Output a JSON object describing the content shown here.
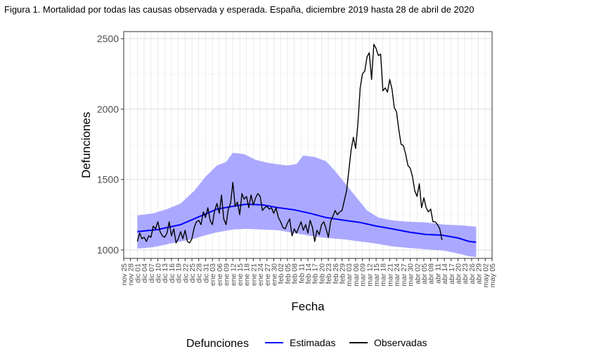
{
  "figure": {
    "caption": "Figura 1. Mortalidad por todas las causas observada y esperada. España, diciembre 2019 hasta 28 de abril de 2020"
  },
  "colors": {
    "expected_line": "#0000ff",
    "expected_band": "#a7a4ff",
    "observed_line": "#000000",
    "grid": "#e6e6e6",
    "panel_border": "#333333"
  },
  "chart_data": {
    "type": "line",
    "title": "",
    "xlabel": "Fecha",
    "ylabel": "Defunciones",
    "ylim": [
      940,
      2550
    ],
    "y_ticks": [
      1000,
      1500,
      2000,
      2500
    ],
    "x_date_range": [
      "2019-11-25",
      "2020-05-05"
    ],
    "x_tick_dates": [
      "2019-11-25",
      "2019-11-28",
      "2019-12-01",
      "2019-12-04",
      "2019-12-07",
      "2019-12-10",
      "2019-12-13",
      "2019-12-16",
      "2019-12-19",
      "2019-12-22",
      "2019-12-25",
      "2019-12-28",
      "2019-12-31",
      "2020-01-03",
      "2020-01-06",
      "2020-01-09",
      "2020-01-12",
      "2020-01-15",
      "2020-01-18",
      "2020-01-21",
      "2020-01-24",
      "2020-01-27",
      "2020-01-30",
      "2020-02-02",
      "2020-02-05",
      "2020-02-08",
      "2020-02-11",
      "2020-02-14",
      "2020-02-17",
      "2020-02-20",
      "2020-02-23",
      "2020-02-26",
      "2020-02-29",
      "2020-03-03",
      "2020-03-06",
      "2020-03-09",
      "2020-03-12",
      "2020-03-15",
      "2020-03-18",
      "2020-03-21",
      "2020-03-24",
      "2020-03-27",
      "2020-03-30",
      "2020-04-02",
      "2020-04-05",
      "2020-04-08",
      "2020-04-11",
      "2020-04-14",
      "2020-04-17",
      "2020-04-20",
      "2020-04-23",
      "2020-04-26",
      "2020-04-29",
      "2020-05-02",
      "2020-05-05"
    ],
    "x_tick_labels": [
      "nov 25",
      "nov 28",
      "dic 01",
      "dic 04",
      "dic 07",
      "dic 10",
      "dic 13",
      "dic 16",
      "dic 19",
      "dic 22",
      "dic 25",
      "dic 28",
      "dic 31",
      "ene 03",
      "ene 06",
      "ene 09",
      "ene 12",
      "ene 15",
      "ene 18",
      "ene 21",
      "ene 24",
      "ene 27",
      "ene 30",
      "feb 02",
      "feb 05",
      "feb 08",
      "feb 11",
      "feb 14",
      "feb 17",
      "feb 20",
      "feb 23",
      "feb 26",
      "feb 29",
      "mar 03",
      "mar 06",
      "mar 09",
      "mar 12",
      "mar 15",
      "mar 18",
      "mar 21",
      "mar 24",
      "mar 27",
      "mar 30",
      "abr 02",
      "abr 05",
      "abr 08",
      "abr 11",
      "abr 14",
      "abr 17",
      "abr 20",
      "abr 23",
      "abr 26",
      "abr 29",
      "may 02",
      "may 05"
    ],
    "legend": {
      "title": "Defunciones",
      "position": "bottom",
      "entries": [
        "Estimadas",
        "Observadas"
      ]
    },
    "series": [
      {
        "name": "Estimadas",
        "points": [
          [
            "2019-12-01",
            1130
          ],
          [
            "2019-12-10",
            1145
          ],
          [
            "2019-12-20",
            1180
          ],
          [
            "2019-12-28",
            1235
          ],
          [
            "2020-01-05",
            1290
          ],
          [
            "2020-01-12",
            1310
          ],
          [
            "2020-01-18",
            1325
          ],
          [
            "2020-01-25",
            1320
          ],
          [
            "2020-02-01",
            1300
          ],
          [
            "2020-02-08",
            1285
          ],
          [
            "2020-02-15",
            1260
          ],
          [
            "2020-02-22",
            1230
          ],
          [
            "2020-03-01",
            1210
          ],
          [
            "2020-03-08",
            1195
          ],
          [
            "2020-03-15",
            1170
          ],
          [
            "2020-03-22",
            1150
          ],
          [
            "2020-03-30",
            1125
          ],
          [
            "2020-04-06",
            1110
          ],
          [
            "2020-04-13",
            1105
          ],
          [
            "2020-04-20",
            1085
          ],
          [
            "2020-04-25",
            1060
          ],
          [
            "2020-04-28",
            1055
          ]
        ]
      },
      {
        "name": "Band",
        "upper": [
          [
            "2019-12-01",
            1245
          ],
          [
            "2019-12-08",
            1260
          ],
          [
            "2019-12-14",
            1290
          ],
          [
            "2019-12-20",
            1330
          ],
          [
            "2019-12-26",
            1420
          ],
          [
            "2019-12-31",
            1520
          ],
          [
            "2020-01-05",
            1600
          ],
          [
            "2020-01-09",
            1625
          ],
          [
            "2020-01-12",
            1690
          ],
          [
            "2020-01-17",
            1680
          ],
          [
            "2020-01-22",
            1640
          ],
          [
            "2020-01-27",
            1620
          ],
          [
            "2020-01-31",
            1610
          ],
          [
            "2020-02-05",
            1600
          ],
          [
            "2020-02-09",
            1610
          ],
          [
            "2020-02-12",
            1670
          ],
          [
            "2020-02-17",
            1660
          ],
          [
            "2020-02-22",
            1630
          ],
          [
            "2020-02-26",
            1560
          ],
          [
            "2020-03-01",
            1480
          ],
          [
            "2020-03-06",
            1380
          ],
          [
            "2020-03-11",
            1280
          ],
          [
            "2020-03-16",
            1230
          ],
          [
            "2020-03-22",
            1210
          ],
          [
            "2020-03-29",
            1200
          ],
          [
            "2020-04-06",
            1195
          ],
          [
            "2020-04-14",
            1180
          ],
          [
            "2020-04-21",
            1175
          ],
          [
            "2020-04-25",
            1170
          ],
          [
            "2020-04-28",
            1165
          ]
        ],
        "lower": [
          [
            "2019-12-01",
            1010
          ],
          [
            "2019-12-08",
            1020
          ],
          [
            "2019-12-14",
            1040
          ],
          [
            "2019-12-20",
            1060
          ],
          [
            "2019-12-26",
            1080
          ],
          [
            "2019-12-31",
            1105
          ],
          [
            "2020-01-05",
            1125
          ],
          [
            "2020-01-12",
            1145
          ],
          [
            "2020-01-18",
            1150
          ],
          [
            "2020-01-25",
            1145
          ],
          [
            "2020-02-01",
            1140
          ],
          [
            "2020-02-08",
            1120
          ],
          [
            "2020-02-15",
            1100
          ],
          [
            "2020-02-22",
            1085
          ],
          [
            "2020-03-01",
            1075
          ],
          [
            "2020-03-08",
            1060
          ],
          [
            "2020-03-15",
            1045
          ],
          [
            "2020-03-22",
            1025
          ],
          [
            "2020-03-29",
            1015
          ],
          [
            "2020-04-06",
            1005
          ],
          [
            "2020-04-14",
            995
          ],
          [
            "2020-04-20",
            975
          ],
          [
            "2020-04-25",
            955
          ],
          [
            "2020-04-28",
            950
          ]
        ]
      },
      {
        "name": "Observadas",
        "points": [
          [
            "2019-12-01",
            1060
          ],
          [
            "2019-12-02",
            1120
          ],
          [
            "2019-12-03",
            1080
          ],
          [
            "2019-12-04",
            1090
          ],
          [
            "2019-12-05",
            1060
          ],
          [
            "2019-12-06",
            1100
          ],
          [
            "2019-12-07",
            1090
          ],
          [
            "2019-12-08",
            1170
          ],
          [
            "2019-12-09",
            1150
          ],
          [
            "2019-12-10",
            1200
          ],
          [
            "2019-12-11",
            1130
          ],
          [
            "2019-12-12",
            1100
          ],
          [
            "2019-12-13",
            1090
          ],
          [
            "2019-12-14",
            1120
          ],
          [
            "2019-12-15",
            1200
          ],
          [
            "2019-12-16",
            1100
          ],
          [
            "2019-12-17",
            1150
          ],
          [
            "2019-12-18",
            1050
          ],
          [
            "2019-12-19",
            1080
          ],
          [
            "2019-12-20",
            1130
          ],
          [
            "2019-12-21",
            1080
          ],
          [
            "2019-12-22",
            1140
          ],
          [
            "2019-12-23",
            1060
          ],
          [
            "2019-12-24",
            1050
          ],
          [
            "2019-12-25",
            1080
          ],
          [
            "2019-12-26",
            1160
          ],
          [
            "2019-12-27",
            1200
          ],
          [
            "2019-12-28",
            1210
          ],
          [
            "2019-12-29",
            1180
          ],
          [
            "2019-12-30",
            1270
          ],
          [
            "2019-12-31",
            1230
          ],
          [
            "2020-01-01",
            1300
          ],
          [
            "2020-01-02",
            1210
          ],
          [
            "2020-01-03",
            1180
          ],
          [
            "2020-01-04",
            1280
          ],
          [
            "2020-01-05",
            1330
          ],
          [
            "2020-01-06",
            1260
          ],
          [
            "2020-01-07",
            1390
          ],
          [
            "2020-01-08",
            1220
          ],
          [
            "2020-01-09",
            1180
          ],
          [
            "2020-01-10",
            1290
          ],
          [
            "2020-01-11",
            1330
          ],
          [
            "2020-01-12",
            1480
          ],
          [
            "2020-01-13",
            1310
          ],
          [
            "2020-01-14",
            1340
          ],
          [
            "2020-01-15",
            1250
          ],
          [
            "2020-01-16",
            1400
          ],
          [
            "2020-01-17",
            1360
          ],
          [
            "2020-01-18",
            1380
          ],
          [
            "2020-01-19",
            1300
          ],
          [
            "2020-01-20",
            1390
          ],
          [
            "2020-01-21",
            1320
          ],
          [
            "2020-01-22",
            1370
          ],
          [
            "2020-01-23",
            1400
          ],
          [
            "2020-01-24",
            1380
          ],
          [
            "2020-01-25",
            1280
          ],
          [
            "2020-01-26",
            1300
          ],
          [
            "2020-01-27",
            1310
          ],
          [
            "2020-01-28",
            1290
          ],
          [
            "2020-01-29",
            1300
          ],
          [
            "2020-01-30",
            1260
          ],
          [
            "2020-01-31",
            1300
          ],
          [
            "2020-02-01",
            1230
          ],
          [
            "2020-02-02",
            1200
          ],
          [
            "2020-02-03",
            1160
          ],
          [
            "2020-02-04",
            1150
          ],
          [
            "2020-02-05",
            1190
          ],
          [
            "2020-02-06",
            1220
          ],
          [
            "2020-02-07",
            1100
          ],
          [
            "2020-02-08",
            1150
          ],
          [
            "2020-02-09",
            1120
          ],
          [
            "2020-02-10",
            1160
          ],
          [
            "2020-02-11",
            1200
          ],
          [
            "2020-02-12",
            1140
          ],
          [
            "2020-02-13",
            1180
          ],
          [
            "2020-02-14",
            1120
          ],
          [
            "2020-02-15",
            1210
          ],
          [
            "2020-02-16",
            1160
          ],
          [
            "2020-02-17",
            1060
          ],
          [
            "2020-02-18",
            1140
          ],
          [
            "2020-02-19",
            1110
          ],
          [
            "2020-02-20",
            1180
          ],
          [
            "2020-02-21",
            1200
          ],
          [
            "2020-02-22",
            1150
          ],
          [
            "2020-02-23",
            1090
          ],
          [
            "2020-02-24",
            1200
          ],
          [
            "2020-02-25",
            1240
          ],
          [
            "2020-02-26",
            1280
          ],
          [
            "2020-02-27",
            1250
          ],
          [
            "2020-02-28",
            1270
          ],
          [
            "2020-02-29",
            1280
          ],
          [
            "2020-03-01",
            1350
          ],
          [
            "2020-03-02",
            1420
          ],
          [
            "2020-03-03",
            1560
          ],
          [
            "2020-03-04",
            1710
          ],
          [
            "2020-03-05",
            1800
          ],
          [
            "2020-03-06",
            1720
          ],
          [
            "2020-03-07",
            1900
          ],
          [
            "2020-03-08",
            2150
          ],
          [
            "2020-03-09",
            2250
          ],
          [
            "2020-03-10",
            2270
          ],
          [
            "2020-03-11",
            2370
          ],
          [
            "2020-03-12",
            2400
          ],
          [
            "2020-03-13",
            2210
          ],
          [
            "2020-03-14",
            2460
          ],
          [
            "2020-03-15",
            2430
          ],
          [
            "2020-03-16",
            2380
          ],
          [
            "2020-03-17",
            2390
          ],
          [
            "2020-03-18",
            2130
          ],
          [
            "2020-03-19",
            2150
          ],
          [
            "2020-03-20",
            2120
          ],
          [
            "2020-03-21",
            2210
          ],
          [
            "2020-03-22",
            2140
          ],
          [
            "2020-03-23",
            2010
          ],
          [
            "2020-03-24",
            1980
          ],
          [
            "2020-03-25",
            1850
          ],
          [
            "2020-03-26",
            1750
          ],
          [
            "2020-03-27",
            1740
          ],
          [
            "2020-03-28",
            1680
          ],
          [
            "2020-03-29",
            1600
          ],
          [
            "2020-03-30",
            1580
          ],
          [
            "2020-03-31",
            1520
          ],
          [
            "2020-04-01",
            1420
          ],
          [
            "2020-04-02",
            1380
          ],
          [
            "2020-04-03",
            1470
          ],
          [
            "2020-04-04",
            1300
          ],
          [
            "2020-04-05",
            1370
          ],
          [
            "2020-04-06",
            1300
          ],
          [
            "2020-04-07",
            1270
          ],
          [
            "2020-04-08",
            1290
          ],
          [
            "2020-04-09",
            1200
          ],
          [
            "2020-04-10",
            1200
          ],
          [
            "2020-04-11",
            1180
          ],
          [
            "2020-04-12",
            1150
          ],
          [
            "2020-04-13",
            1070
          ]
        ]
      }
    ]
  }
}
